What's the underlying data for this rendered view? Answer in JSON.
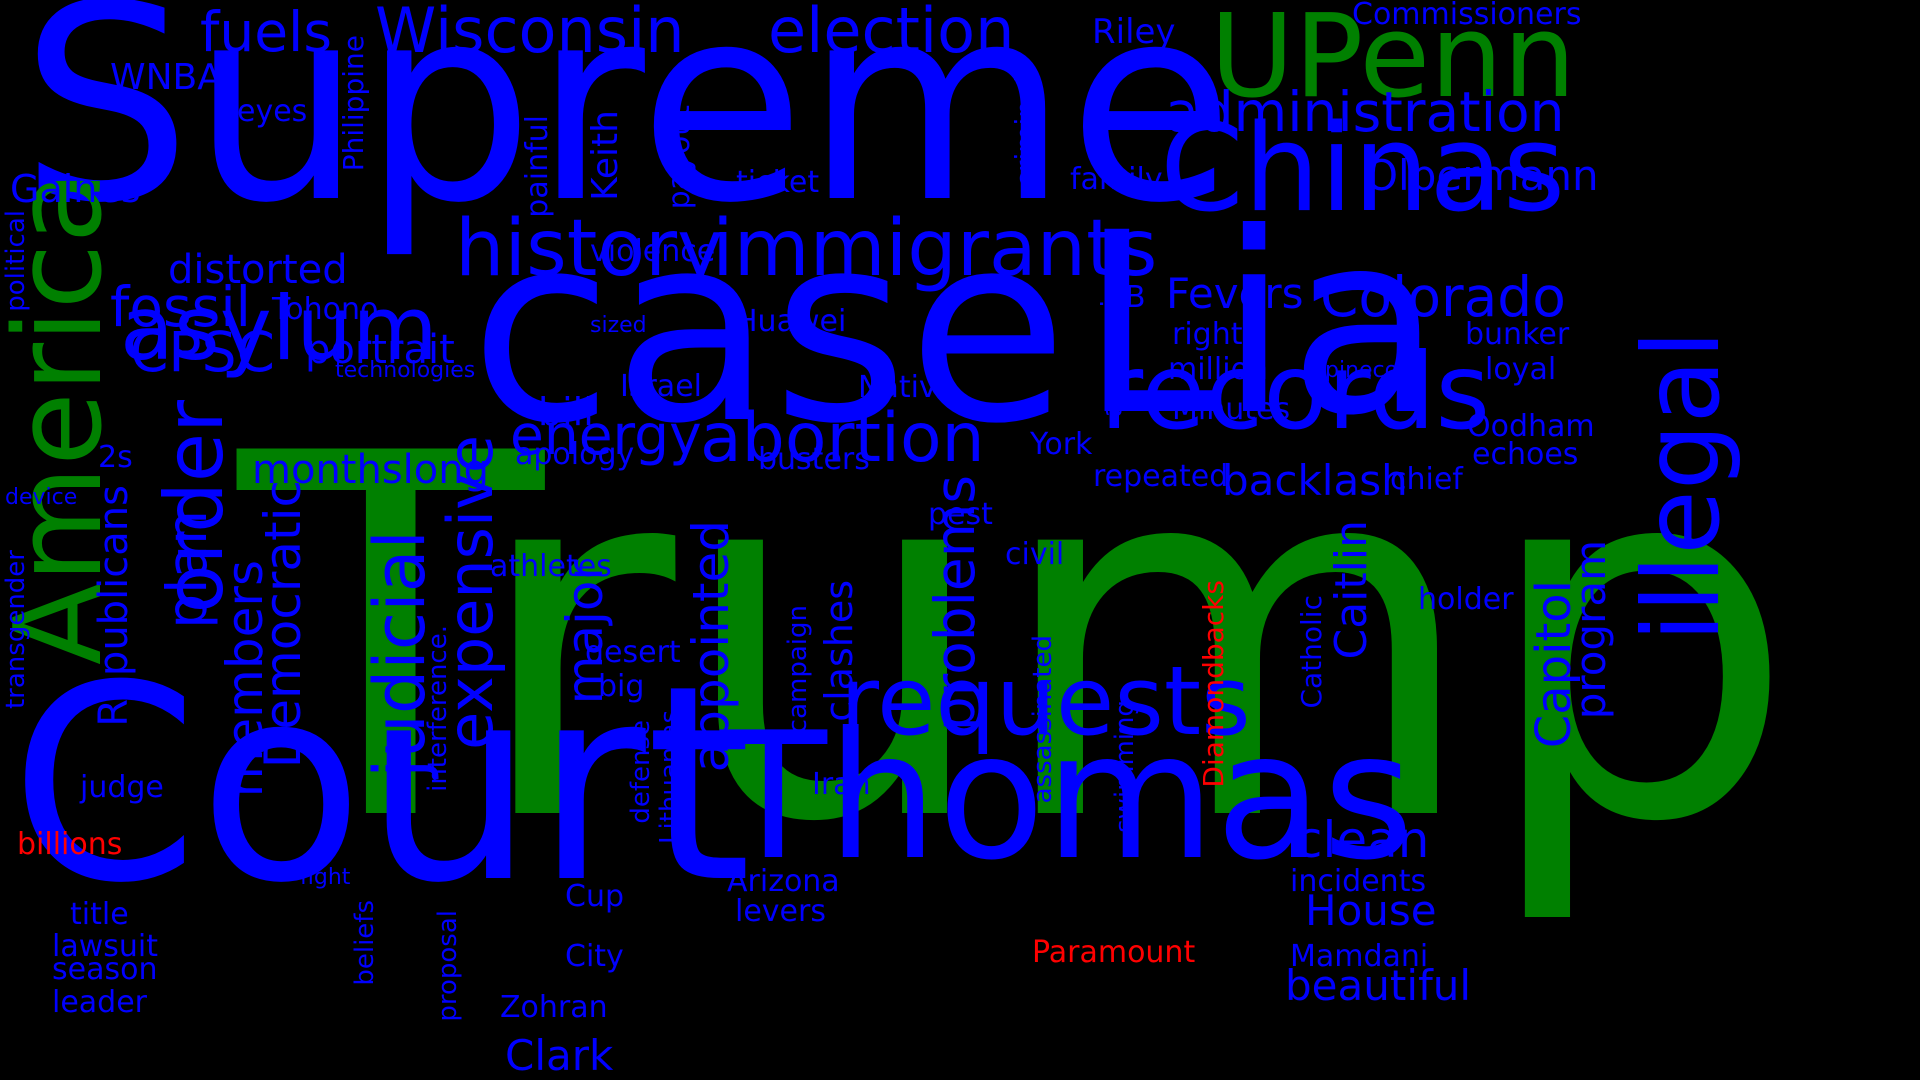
{
  "colors": {
    "background": "#000000",
    "blue": "#0000ff",
    "green": "#008000",
    "red": "#ff0000"
  },
  "words": [
    {
      "text": "Trump",
      "color": "green"
    },
    {
      "text": "Supreme",
      "color": "blue"
    },
    {
      "text": "case",
      "color": "blue"
    },
    {
      "text": "Court",
      "color": "blue"
    },
    {
      "text": "Lia",
      "color": "blue"
    },
    {
      "text": "Thomas",
      "color": "blue"
    },
    {
      "text": "America",
      "color": "green"
    },
    {
      "text": "Chinas",
      "color": "blue"
    },
    {
      "text": "UPenn",
      "color": "green"
    },
    {
      "text": "records",
      "color": "blue"
    },
    {
      "text": "illegal",
      "color": "blue"
    },
    {
      "text": "requests",
      "color": "blue"
    },
    {
      "text": "history",
      "color": "blue"
    },
    {
      "text": "immigrants",
      "color": "blue"
    },
    {
      "text": "asylum",
      "color": "blue"
    },
    {
      "text": "order",
      "color": "blue"
    },
    {
      "text": "judicial",
      "color": "blue"
    },
    {
      "text": "abortion",
      "color": "blue"
    },
    {
      "text": "expensive",
      "color": "blue"
    },
    {
      "text": "Wisconsin",
      "color": "blue"
    },
    {
      "text": "election",
      "color": "blue"
    },
    {
      "text": "administration",
      "color": "blue"
    },
    {
      "text": "Colorado",
      "color": "blue"
    },
    {
      "text": "problems",
      "color": "blue"
    },
    {
      "text": "Capitol",
      "color": "blue"
    },
    {
      "text": "fuels",
      "color": "blue"
    },
    {
      "text": "fossil",
      "color": "blue"
    },
    {
      "text": "CPSC",
      "color": "blue"
    },
    {
      "text": "energy",
      "color": "blue"
    },
    {
      "text": "plan",
      "color": "blue"
    },
    {
      "text": "members",
      "color": "blue"
    },
    {
      "text": "Democratic",
      "color": "blue"
    },
    {
      "text": "major",
      "color": "blue"
    },
    {
      "text": "appointed",
      "color": "blue"
    },
    {
      "text": "clean",
      "color": "blue"
    },
    {
      "text": "Caitlin",
      "color": "blue"
    },
    {
      "text": "program",
      "color": "blue"
    },
    {
      "text": "Olbermann",
      "color": "blue"
    },
    {
      "text": "Fevers",
      "color": "blue"
    },
    {
      "text": "backlash",
      "color": "blue"
    },
    {
      "text": "beautiful",
      "color": "blue"
    },
    {
      "text": "House",
      "color": "blue"
    },
    {
      "text": "Clark",
      "color": "blue"
    },
    {
      "text": "distorted",
      "color": "blue"
    },
    {
      "text": "portrait",
      "color": "blue"
    },
    {
      "text": "monthslong",
      "color": "blue"
    },
    {
      "text": "Republicans",
      "color": "blue"
    },
    {
      "text": "Gaines",
      "color": "blue"
    },
    {
      "text": "bill",
      "color": "blue"
    },
    {
      "text": "clashes",
      "color": "blue"
    },
    {
      "text": "Keith",
      "color": "blue"
    },
    {
      "text": "Riley",
      "color": "blue"
    },
    {
      "text": "Commissioners",
      "color": "blue"
    },
    {
      "text": "WNBA",
      "color": "blue"
    },
    {
      "text": "eyes",
      "color": "blue"
    },
    {
      "text": "Philippine",
      "color": "blue"
    },
    {
      "text": "painful",
      "color": "blue"
    },
    {
      "text": "payout",
      "color": "blue"
    },
    {
      "text": "ticket",
      "color": "blue"
    },
    {
      "text": "criminal",
      "color": "blue"
    },
    {
      "text": "family",
      "color": "blue"
    },
    {
      "text": "political",
      "color": "blue"
    },
    {
      "text": "violence",
      "color": "blue"
    },
    {
      "text": "Tohono",
      "color": "blue"
    },
    {
      "text": "Huawei",
      "color": "blue"
    },
    {
      "text": "aggression",
      "color": "blue"
    },
    {
      "text": "B",
      "color": "blue"
    },
    {
      "text": "rights",
      "color": "blue"
    },
    {
      "text": "bunker",
      "color": "blue"
    },
    {
      "text": "million",
      "color": "blue"
    },
    {
      "text": "pinecone",
      "color": "blue"
    },
    {
      "text": "loyal",
      "color": "blue"
    },
    {
      "text": "sized",
      "color": "blue"
    },
    {
      "text": "technologies",
      "color": "blue"
    },
    {
      "text": "Israel",
      "color": "blue"
    },
    {
      "text": "Native",
      "color": "blue"
    },
    {
      "text": "Minutes",
      "color": "blue"
    },
    {
      "text": "Oodham",
      "color": "blue"
    },
    {
      "text": "echoes",
      "color": "blue"
    },
    {
      "text": "2s",
      "color": "blue"
    },
    {
      "text": "apology",
      "color": "blue"
    },
    {
      "text": "busters",
      "color": "blue"
    },
    {
      "text": "York",
      "color": "blue"
    },
    {
      "text": "repeated",
      "color": "blue"
    },
    {
      "text": "chief",
      "color": "blue"
    },
    {
      "text": "device",
      "color": "blue"
    },
    {
      "text": "pest",
      "color": "blue"
    },
    {
      "text": "civil",
      "color": "blue"
    },
    {
      "text": "athletes",
      "color": "blue"
    },
    {
      "text": "holder",
      "color": "blue"
    },
    {
      "text": "transgender",
      "color": "blue"
    },
    {
      "text": "interference.",
      "color": "blue"
    },
    {
      "text": "desert",
      "color": "blue"
    },
    {
      "text": "big",
      "color": "blue"
    },
    {
      "text": "campaign",
      "color": "blue"
    },
    {
      "text": "assassinated",
      "color": "blue"
    },
    {
      "text": "Catholic",
      "color": "blue"
    },
    {
      "text": "swimming",
      "color": "blue"
    },
    {
      "text": "Diamondbacks",
      "color": "red"
    },
    {
      "text": "defense",
      "color": "blue"
    },
    {
      "text": "Lithuanias",
      "color": "blue"
    },
    {
      "text": "judge",
      "color": "blue"
    },
    {
      "text": "Iran",
      "color": "blue"
    },
    {
      "text": "billions",
      "color": "red"
    },
    {
      "text": "fight",
      "color": "blue"
    },
    {
      "text": "Arizona",
      "color": "blue"
    },
    {
      "text": "incidents",
      "color": "blue"
    },
    {
      "text": "title",
      "color": "blue"
    },
    {
      "text": "Cup",
      "color": "blue"
    },
    {
      "text": "levers",
      "color": "blue"
    },
    {
      "text": "lawsuit",
      "color": "blue"
    },
    {
      "text": "season",
      "color": "blue"
    },
    {
      "text": "beliefs",
      "color": "blue"
    },
    {
      "text": "proposal",
      "color": "blue"
    },
    {
      "text": "City",
      "color": "blue"
    },
    {
      "text": "Paramount",
      "color": "red"
    },
    {
      "text": "Mamdani",
      "color": "blue"
    },
    {
      "text": "leader",
      "color": "blue"
    },
    {
      "text": "Zohran",
      "color": "blue"
    }
  ]
}
